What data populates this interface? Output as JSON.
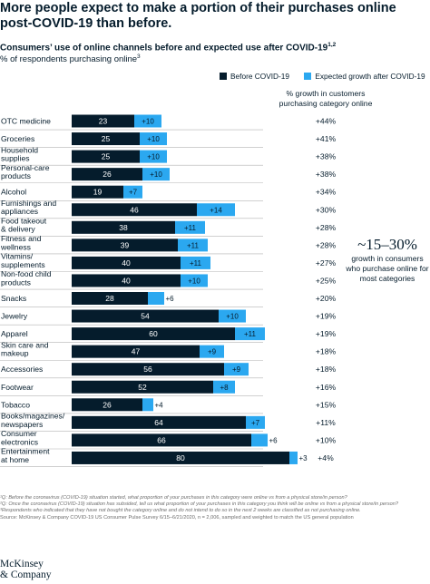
{
  "headline": "More people expect to make a portion of their purchases online post-COVID-19 than before.",
  "subtitle": {
    "text": "Consumers’ use of online channels before and expected use after COVID-19",
    "sup": "1,2"
  },
  "subsubtitle": {
    "text": "% of respondents purchasing online",
    "sup": "3"
  },
  "colors": {
    "before": "#051c2c",
    "growth": "#2ba8f0",
    "text": "#051c2c",
    "grid": "#b3b3b3"
  },
  "chart_data": {
    "type": "bar",
    "stacked": true,
    "orientation": "horizontal",
    "categories": [
      [
        "OTC medicine"
      ],
      [
        "Groceries"
      ],
      [
        "Household",
        "supplies"
      ],
      [
        "Personal-care",
        "products"
      ],
      [
        "Alcohol"
      ],
      [
        "Furnishings and",
        "appliances"
      ],
      [
        "Food takeout",
        "& delivery"
      ],
      [
        "Fitness and",
        "wellness"
      ],
      [
        "Vitamins/",
        "supplements"
      ],
      [
        "Non-food child",
        "products"
      ],
      [
        "Snacks"
      ],
      [
        "Jewelry"
      ],
      [
        "Apparel"
      ],
      [
        "Skin care and",
        "makeup"
      ],
      [
        "Accessories"
      ],
      [
        "Footwear"
      ],
      [
        "Tobacco"
      ],
      [
        "Books/magazines/",
        "newspapers"
      ],
      [
        "Consumer",
        "electronics"
      ],
      [
        "Entertainment",
        "at home"
      ]
    ],
    "series": [
      {
        "name": "Before COVID-19",
        "values": [
          23,
          25,
          25,
          26,
          19,
          46,
          38,
          39,
          40,
          40,
          28,
          54,
          60,
          47,
          56,
          52,
          26,
          64,
          66,
          80
        ]
      },
      {
        "name": "Expected growth after COVID-19",
        "values": [
          10,
          10,
          10,
          10,
          7,
          14,
          11,
          11,
          11,
          10,
          6,
          10,
          11,
          9,
          9,
          8,
          4,
          7,
          6,
          3
        ]
      }
    ],
    "growth_labels": [
      "+44%",
      "+41%",
      "+38%",
      "+38%",
      "+34%",
      "+30%",
      "+28%",
      "+28%",
      "+27%",
      "+25%",
      "+20%",
      "+19%",
      "+19%",
      "+18%",
      "+18%",
      "+16%",
      "+15%",
      "+11%",
      "+10%",
      "+4%"
    ],
    "growth_column_title": "% growth in customers purchasing category online",
    "xlim": [
      0,
      100
    ]
  },
  "callout": {
    "big": "~15–30%",
    "text": "growth in consumers who purchase online for most categories"
  },
  "footnotes": [
    "¹Q: Before the coronavirus (COVID-19) situation started, what proportion of your purchases in this category were online vs from a physical store/in person?",
    "²Q: Once the coronavirus (COVID-19) situation has subsided, tell us what proportion of your purchases in this category you think will be online vs from a physical store/in person?",
    "³Respondents who indicated that they have not bought the category online and do not intend to do so in the next 2 weeks are classified as not purchasing online."
  ],
  "source": "Source: McKinsey & Company COVID-19 US Consumer Pulse Survey 6/15–6/21/2020, n = 2,006, sampled and weighted to match the US general population",
  "logo": {
    "line1": "McKinsey",
    "line2": "& Company"
  }
}
